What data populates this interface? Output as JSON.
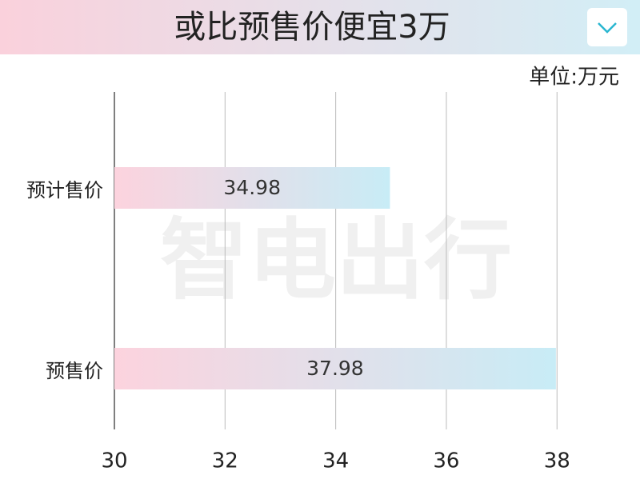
{
  "chart_data": {
    "type": "bar",
    "orientation": "horizontal",
    "title": "或比预售价便宜3万",
    "unit_label": "单位:万元",
    "watermark": "智电出行",
    "categories": [
      "预计售价",
      "预售价"
    ],
    "values": [
      34.98,
      37.98
    ],
    "colors": [
      "#fcd3de",
      "#c8ecf6"
    ],
    "xlim": [
      30,
      39.5
    ],
    "xticks": [
      30,
      32,
      34,
      36,
      38
    ],
    "grid": true
  }
}
